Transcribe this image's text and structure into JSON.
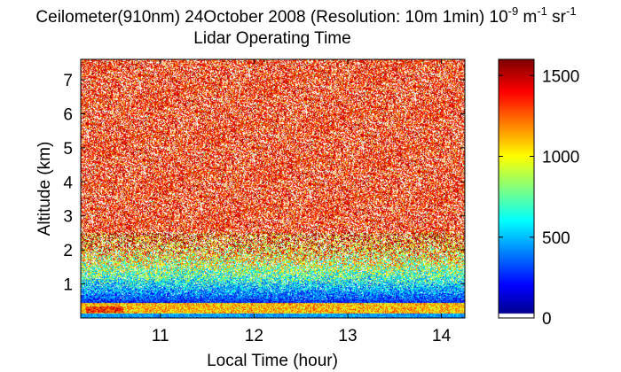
{
  "chart_data": {
    "type": "heatmap",
    "title": {
      "line1": "Ceilometer(910nm) 24October 2008 (Resolution: 10m 1min) 10",
      "exp1": "-9",
      "unit_m": " m",
      "exp2": "-1",
      "unit_sr": " sr",
      "exp3": "-1",
      "line2": "Lidar Operating Time"
    },
    "xlabel": "Local Time (hour)",
    "ylabel": "Altitude (km)",
    "xlim": [
      10.15,
      14.25
    ],
    "ylim": [
      0,
      7.6
    ],
    "xticks": [
      11,
      12,
      13,
      14
    ],
    "yticks": [
      1,
      2,
      3,
      4,
      5,
      6,
      7
    ],
    "colorbar": {
      "clim": [
        0,
        1600
      ],
      "ticks": [
        0,
        500,
        1000,
        1500
      ],
      "colormap": "jet"
    },
    "field": {
      "description_rows_km": [
        0,
        7.6
      ],
      "noise_saturation_altitude_km": 2.5,
      "boundary_layer_top_km": 0.45,
      "aerosol_layer_km": [
        0.15,
        0.45
      ],
      "aerosol_layer_level": 1100,
      "surface_level": 450,
      "hot_spot": {
        "x": [
          10.2,
          10.6
        ],
        "level": 1350
      }
    }
  },
  "colors": {
    "background": "#ffffff",
    "axis": "#000000",
    "low": "#00008f",
    "high": "#800000"
  }
}
